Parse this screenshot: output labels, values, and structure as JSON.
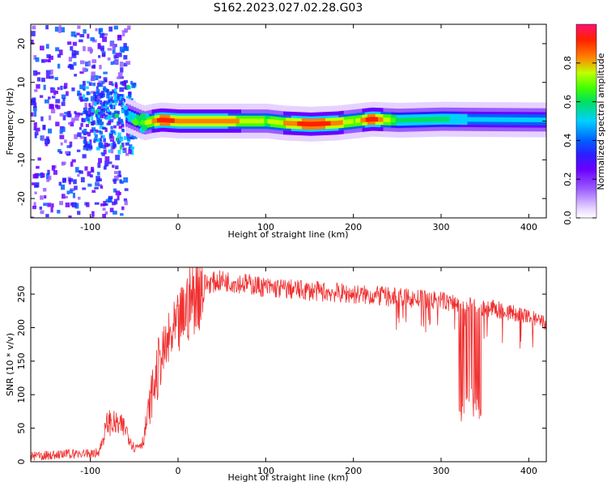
{
  "figure": {
    "title": "S162.2023.027.02.28.G03"
  },
  "colors": {
    "snr_line": "#f03030",
    "spectrum_cmap": [
      "#ffffff",
      "#e6d2ff",
      "#9a5cff",
      "#6a00ff",
      "#2a20ff",
      "#0060ff",
      "#00d0ff",
      "#00e060",
      "#40ff00",
      "#c0ff00",
      "#ff8000",
      "#ff2000",
      "#ff1070"
    ]
  },
  "chart_data": [
    {
      "type": "heatmap",
      "title": "",
      "xlabel": "Height of straight line (km)",
      "ylabel": "Frequency (Hz)",
      "xlim": [
        -168,
        420
      ],
      "ylim": [
        -25,
        25
      ],
      "xticks": [
        -100,
        0,
        100,
        200,
        300,
        400
      ],
      "yticks": [
        -20,
        -10,
        0,
        10,
        20
      ],
      "colorbar": {
        "label": "Normalized spectral amplitude",
        "range": [
          0,
          1
        ],
        "ticks": [
          0.0,
          0.2,
          0.4,
          0.6,
          0.8
        ]
      },
      "ridge": {
        "x": [
          -168,
          -120,
          -100,
          -80,
          -60,
          -50,
          -40,
          -30,
          -20,
          0,
          50,
          100,
          120,
          150,
          180,
          200,
          220,
          250,
          300,
          350,
          420
        ],
        "frequency": [
          0,
          0,
          1,
          2,
          1.5,
          0.5,
          -0.5,
          0,
          0.3,
          0,
          0,
          0,
          -0.5,
          -0.8,
          -0.5,
          0,
          0.5,
          0.2,
          0.5,
          0.4,
          0.3
        ],
        "peak_amplitude": [
          0.25,
          0.3,
          0.35,
          0.45,
          0.5,
          0.6,
          0.7,
          0.8,
          0.95,
          0.85,
          0.85,
          0.7,
          0.8,
          0.95,
          0.85,
          0.7,
          0.95,
          0.6,
          0.55,
          0.5,
          0.5
        ]
      }
    },
    {
      "type": "line",
      "title": "",
      "xlabel": "Height of straight line (km)",
      "ylabel": "SNR (10 * v/v)",
      "xlim": [
        -168,
        420
      ],
      "ylim": [
        0,
        290
      ],
      "xticks": [
        -100,
        0,
        100,
        200,
        300,
        400
      ],
      "yticks": [
        0,
        50,
        100,
        150,
        200,
        250
      ],
      "series": [
        {
          "x": [
            -168,
            -140,
            -120,
            -100,
            -90,
            -80,
            -70,
            -60,
            -50,
            -40,
            -30,
            -20,
            -10,
            0,
            10,
            20,
            30,
            50,
            80,
            100,
            150,
            200,
            250,
            300,
            320,
            340,
            360,
            380,
            400,
            420
          ],
          "y": [
            8,
            10,
            12,
            12,
            15,
            60,
            55,
            50,
            20,
            30,
            100,
            150,
            180,
            200,
            230,
            255,
            265,
            270,
            265,
            260,
            255,
            250,
            245,
            240,
            235,
            230,
            228,
            222,
            215,
            205
          ]
        }
      ],
      "dropouts": {
        "x": [
          320,
          325,
          330,
          335,
          340,
          345
        ],
        "y": [
          60,
          50,
          80,
          70,
          55,
          60
        ]
      }
    }
  ]
}
